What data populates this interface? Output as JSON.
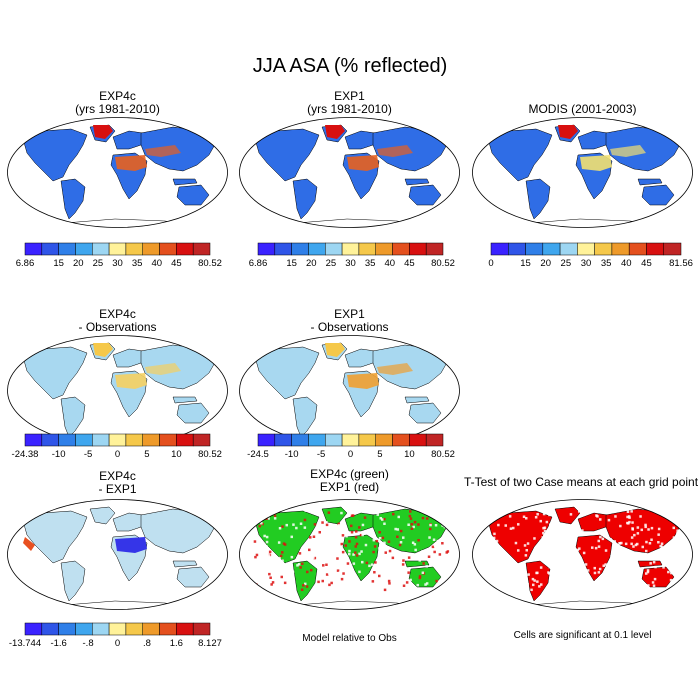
{
  "main_title": "JJA ASA (% reflected)",
  "palette": [
    "#3a22ff",
    "#2f55e8",
    "#2f7fe8",
    "#3fa6ee",
    "#9dd6f2",
    "#fff29a",
    "#f5c84a",
    "#ee9a2a",
    "#e4501e",
    "#d81010",
    "#c02525"
  ],
  "panels": [
    {
      "id": "exp4c",
      "title_line1": "EXP4c",
      "title_line2": "(yrs 1981-2010)",
      "fill": "mean",
      "land_color": "#2f6de6",
      "hot_color": "#e8601e",
      "colorbar": {
        "min_label": "6.86",
        "max_label": "80.52",
        "ticks": [
          "15",
          "20",
          "25",
          "30",
          "35",
          "40",
          "45"
        ]
      }
    },
    {
      "id": "exp1",
      "title_line1": "EXP1",
      "title_line2": "(yrs 1981-2010)",
      "fill": "mean",
      "land_color": "#2f6de6",
      "hot_color": "#e8601e",
      "colorbar": {
        "min_label": "6.86",
        "max_label": "80.52",
        "ticks": [
          "15",
          "20",
          "25",
          "30",
          "35",
          "40",
          "45"
        ]
      }
    },
    {
      "id": "modis",
      "title_line1": "MODIS (2001-2003)",
      "title_line2": "",
      "fill": "mean",
      "land_color": "#2f6de6",
      "hot_color": "#f2e070",
      "colorbar": {
        "min_label": "0",
        "max_label": "81.56",
        "ticks": [
          "15",
          "20",
          "25",
          "30",
          "35",
          "40",
          "45"
        ]
      }
    },
    {
      "id": "exp4c_obs",
      "title_line1": "EXP4c",
      "title_line2": "- Observations",
      "fill": "diff",
      "land_color": "#a8d8f0",
      "hot_color": "#f5d060",
      "colorbar": {
        "min_label": "-24.38",
        "max_label": "80.52",
        "ticks": [
          "-10",
          "-5",
          "0",
          "5",
          "10"
        ]
      }
    },
    {
      "id": "exp1_obs",
      "title_line1": "EXP1",
      "title_line2": "- Observations",
      "fill": "diff",
      "land_color": "#a8d8f0",
      "hot_color": "#f0a030",
      "colorbar": {
        "min_label": "-24.5",
        "max_label": "80.52",
        "ticks": [
          "-10",
          "-5",
          "0",
          "5",
          "10"
        ]
      }
    },
    {
      "id": "exp4c_exp1",
      "title_line1": "EXP4c",
      "title_line2": "- EXP1",
      "fill": "diff2",
      "land_color": "#bfe0f0",
      "hot_color": "#3535e8",
      "colorbar": {
        "min_label": "-13.744",
        "max_label": "8.127",
        "ticks": [
          "-1.6",
          "-.8",
          "0",
          ".8",
          "1.6"
        ]
      }
    },
    {
      "id": "green_red",
      "title_line1": "EXP4c (green)",
      "title_line2": "EXP1 (red)",
      "fill": "mix",
      "land_color": "#22cc22",
      "hot_color": "#dd1111",
      "note": "Model relative to Obs"
    },
    {
      "id": "ttest",
      "title_line1": "T-Test of two Case means at each grid point",
      "title_line2": "",
      "fill": "sig",
      "land_color": "#ee0000",
      "hot_color": "#ee0000",
      "note": "Cells are significant at 0.1 level"
    }
  ]
}
